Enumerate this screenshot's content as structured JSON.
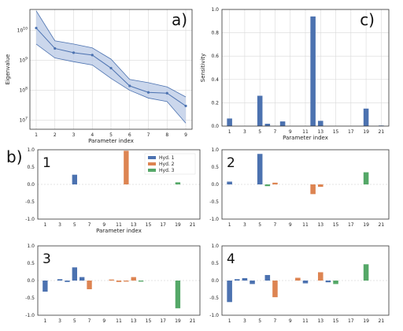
{
  "colors": {
    "blue": "#4C72B0",
    "orange": "#DD8452",
    "green": "#55A868",
    "band": "#b9c9e6",
    "line": "#4C72B0"
  },
  "chart_data": [
    {
      "id": "a",
      "panel_label": "a)",
      "type": "line",
      "xlabel": "Parameter index",
      "ylabel": "Eigenvalue",
      "yscale": "log",
      "ylim": [
        5000000,
        50000000000
      ],
      "y_ticks": [
        10000000,
        100000000,
        1000000000,
        10000000000
      ],
      "y_tick_labels": [
        "10^7",
        "10^8",
        "10^9",
        "10^10"
      ],
      "x": [
        1,
        2,
        3,
        4,
        5,
        6,
        7,
        8,
        9
      ],
      "x_tick_labels": [
        "1",
        "2",
        "3",
        "4",
        "5",
        "6",
        "7",
        "8",
        "9"
      ],
      "series": [
        {
          "values": [
            12000000000,
            2500000000,
            1800000000,
            1500000000,
            550000000,
            140000000,
            85000000,
            80000000,
            30000000
          ]
        }
      ],
      "band_upper": [
        45000000000,
        4500000000,
        3500000000,
        2600000000,
        1100000000,
        230000000,
        180000000,
        130000000,
        60000000
      ],
      "band_lower": [
        3500000000,
        1200000000,
        900000000,
        700000000,
        250000000,
        100000000,
        55000000,
        42000000,
        8000000
      ],
      "grid": true
    },
    {
      "id": "c",
      "panel_label": "c)",
      "type": "bar",
      "xlabel": "Parameter index",
      "ylabel": "Sensitivity",
      "ylim": [
        0,
        1.0
      ],
      "y_ticks": [
        0,
        0.2,
        0.4,
        0.6,
        0.8,
        1.0
      ],
      "y_tick_labels": [
        "0.0",
        "0.2",
        "0.4",
        "0.6",
        "0.8",
        "1.0"
      ],
      "x_ticks": [
        1,
        3,
        5,
        7,
        9,
        11,
        13,
        15,
        17,
        19,
        21
      ],
      "series": [
        {
          "values": [
            0.065,
            0,
            0,
            0,
            0.26,
            0.02,
            0,
            0.04,
            0,
            0,
            0,
            0.94,
            0.045,
            0,
            0,
            0,
            0,
            0,
            0.15,
            0,
            0.005
          ]
        }
      ],
      "grid": true
    },
    {
      "id": "b1",
      "panel_label": "b)",
      "panel_number": "1",
      "type": "bar",
      "xlabel": "Parameter index",
      "ylim": [
        -1.0,
        1.0
      ],
      "y_ticks": [
        -1.0,
        -0.5,
        0,
        0.5,
        1.0
      ],
      "y_tick_labels": [
        "-1.0",
        "-0.5",
        "0.0",
        "0.5",
        "1.0"
      ],
      "x_ticks": [
        1,
        3,
        5,
        7,
        9,
        11,
        13,
        15,
        17,
        19,
        21
      ],
      "legend": [
        "Hyd. 1",
        "Hyd. 2",
        "Hyd. 3"
      ],
      "legend_position": "top-right",
      "series": [
        {
          "name": "Hyd. 1",
          "values": [
            0,
            0,
            0,
            0,
            0.28,
            0,
            0,
            0,
            0,
            0,
            0,
            0,
            0,
            0,
            0,
            0,
            0,
            0,
            0,
            0,
            0
          ]
        },
        {
          "name": "Hyd. 2",
          "values": [
            0,
            0,
            0,
            0,
            0,
            0,
            0,
            0,
            0,
            0,
            0,
            0.97,
            0,
            0,
            0,
            0,
            0,
            0,
            0,
            0,
            0
          ]
        },
        {
          "name": "Hyd. 3",
          "values": [
            0,
            0,
            0,
            0,
            0,
            0,
            0,
            0,
            0,
            0,
            0,
            0,
            0,
            0,
            0,
            0,
            0,
            0,
            0.06,
            0,
            0
          ]
        }
      ]
    },
    {
      "id": "b2",
      "panel_number": "2",
      "type": "bar",
      "ylim": [
        -1.0,
        1.0
      ],
      "y_ticks": [
        -1.0,
        -0.5,
        0,
        0.5,
        1.0
      ],
      "y_tick_labels": [
        "-1.0",
        "-0.5",
        "0.0",
        "0.5",
        "1.0"
      ],
      "x_ticks": [
        1,
        3,
        5,
        7,
        9,
        11,
        13,
        15,
        17,
        19,
        21
      ],
      "series": [
        {
          "values": [
            0.08,
            0,
            0,
            0,
            0.88,
            0.0,
            0,
            0,
            0,
            0,
            0,
            0,
            0,
            0,
            0,
            0,
            0,
            0,
            0,
            0,
            0
          ]
        },
        {
          "values": [
            0,
            0,
            0,
            0,
            0,
            0,
            0.05,
            0,
            0,
            0,
            0,
            -0.28,
            -0.07,
            0,
            0,
            0,
            0,
            0,
            0,
            0,
            0
          ]
        },
        {
          "values": [
            0,
            0,
            0,
            0,
            0,
            -0.05,
            0,
            0,
            0,
            0,
            0,
            0,
            0,
            0,
            0,
            0,
            0,
            0,
            0.35,
            0,
            0
          ]
        }
      ]
    },
    {
      "id": "b3",
      "panel_number": "3",
      "type": "bar",
      "ylim": [
        -1.0,
        1.0
      ],
      "y_ticks": [
        -1.0,
        -0.5,
        0,
        0.5,
        1.0
      ],
      "y_tick_labels": [
        "-1.0",
        "-0.5",
        "0.0",
        "0.5",
        "1.0"
      ],
      "x_ticks": [
        1,
        3,
        5,
        7,
        9,
        11,
        13,
        15,
        17,
        19,
        21
      ],
      "series": [
        {
          "values": [
            -0.32,
            0,
            0.04,
            -0.04,
            0.38,
            0.1,
            0,
            0,
            0,
            0,
            0,
            0,
            0,
            0,
            0,
            0,
            0,
            0,
            0,
            0,
            0
          ]
        },
        {
          "values": [
            0,
            0,
            0,
            0,
            0,
            0,
            -0.25,
            0,
            0,
            0.03,
            -0.04,
            -0.03,
            0.1,
            0,
            0,
            0,
            0,
            0,
            0,
            0,
            0
          ]
        },
        {
          "values": [
            0,
            0,
            0,
            0,
            0,
            0,
            0,
            0,
            0,
            0,
            0,
            0,
            0,
            -0.03,
            0,
            0,
            0,
            0,
            -0.8,
            0,
            0
          ]
        }
      ]
    },
    {
      "id": "b4",
      "panel_number": "4",
      "type": "bar",
      "ylim": [
        -1.0,
        1.0
      ],
      "y_ticks": [
        -1.0,
        -0.5,
        0,
        0.5,
        1.0
      ],
      "y_tick_labels": [
        "-1.0",
        "-0.5",
        "0.0",
        "0.5",
        "1.0"
      ],
      "x_ticks": [
        1,
        3,
        5,
        7,
        9,
        11,
        13,
        15,
        17,
        19,
        21
      ],
      "series": [
        {
          "values": [
            -0.62,
            0.04,
            0.07,
            -0.1,
            0.0,
            0.16,
            0,
            0,
            0,
            0,
            -0.08,
            0,
            0,
            -0.05,
            0,
            0,
            0,
            0,
            0,
            0,
            0
          ]
        },
        {
          "values": [
            0,
            0,
            0,
            0,
            0,
            0,
            -0.48,
            0,
            0,
            0.08,
            0,
            0,
            0.24,
            0,
            0,
            0,
            0,
            0,
            0,
            0,
            0
          ]
        },
        {
          "values": [
            0,
            0,
            0,
            0,
            0,
            0,
            0,
            0,
            0,
            0,
            0,
            0,
            0,
            0,
            -0.1,
            0,
            0,
            0,
            0.47,
            0,
            0
          ]
        }
      ]
    }
  ]
}
